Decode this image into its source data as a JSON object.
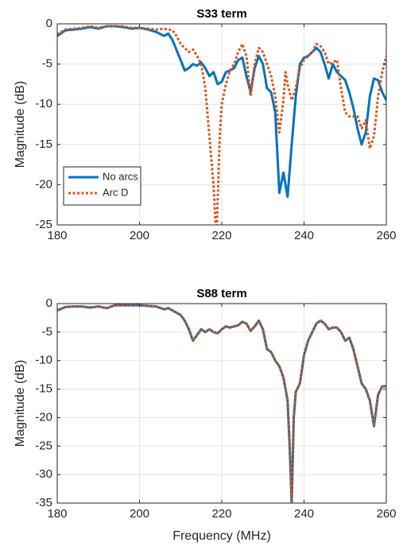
{
  "chart_data": [
    {
      "type": "line",
      "title": "S33 term",
      "ylabel": "Magnitude (dB)",
      "xlim": [
        180,
        260
      ],
      "xticks": [
        180,
        200,
        220,
        240,
        260
      ],
      "ylim": [
        -25,
        0
      ],
      "yticks": [
        -25,
        -20,
        -15,
        -10,
        -5,
        0
      ],
      "grid": true,
      "legend": "lower left",
      "series": [
        {
          "name": "No arcs",
          "color": "#0072bd",
          "style": "solid",
          "x": [
            180,
            182,
            184,
            186,
            188,
            190,
            192,
            194,
            196,
            198,
            200,
            202,
            204,
            206,
            207,
            208,
            210,
            211,
            212,
            213,
            214,
            215,
            216,
            217,
            218,
            219,
            220,
            221,
            222,
            223,
            224,
            225,
            226,
            227,
            228,
            229,
            230,
            231,
            232,
            233,
            234,
            235,
            236,
            237,
            238,
            239,
            240,
            241,
            242,
            243,
            244,
            245,
            246,
            247,
            248,
            249,
            250,
            251,
            252,
            253,
            254,
            255,
            256,
            257,
            258,
            259,
            260
          ],
          "values": [
            -1.5,
            -0.8,
            -0.7,
            -0.6,
            -0.4,
            -0.6,
            -0.3,
            -0.3,
            -0.4,
            -0.6,
            -0.5,
            -0.7,
            -1.0,
            -1.5,
            -1.2,
            -2,
            -4.5,
            -5.8,
            -5.5,
            -5.0,
            -5.2,
            -4.8,
            -5.5,
            -6.5,
            -6.0,
            -7.5,
            -7.2,
            -6.0,
            -5.8,
            -5.5,
            -4.5,
            -4.2,
            -6.5,
            -8.5,
            -5.5,
            -4.0,
            -5.0,
            -8.0,
            -8.5,
            -11.0,
            -21.0,
            -18.5,
            -21.5,
            -15,
            -9,
            -5,
            -4.2,
            -4.0,
            -3.5,
            -3.0,
            -3.5,
            -5.0,
            -6.8,
            -5.0,
            -6.0,
            -6.5,
            -7.0,
            -8.5,
            -10.5,
            -13,
            -15,
            -13.5,
            -9,
            -6.8,
            -7.0,
            -8.5,
            -9.5
          ]
        },
        {
          "name": "Arc D",
          "color": "#d95319",
          "style": "dotted",
          "x": [
            180,
            182,
            184,
            186,
            188,
            190,
            192,
            194,
            196,
            198,
            200,
            202,
            204,
            206,
            208,
            209,
            210,
            211,
            212,
            213,
            214,
            215,
            216,
            217,
            218,
            218.7,
            219.5,
            220,
            221,
            222,
            223,
            224,
            225,
            226,
            227,
            228,
            229,
            230,
            231,
            232,
            233,
            234,
            235,
            235.5,
            236,
            237,
            238,
            239,
            240,
            241,
            242,
            243,
            244,
            245,
            246,
            247,
            248,
            249,
            250,
            251,
            252,
            253,
            254,
            255,
            256,
            257,
            258,
            259,
            260
          ],
          "values": [
            -1.3,
            -0.7,
            -0.6,
            -0.5,
            -0.3,
            -0.5,
            -0.3,
            -0.3,
            -0.3,
            -0.5,
            -0.5,
            -0.6,
            -0.7,
            -0.6,
            -0.8,
            -1.5,
            -2.5,
            -3.0,
            -3.5,
            -3.2,
            -4.0,
            -5,
            -8,
            -14,
            -20,
            -27,
            -14,
            -10,
            -7.5,
            -5.8,
            -5,
            -3.5,
            -2.5,
            -4,
            -9,
            -5,
            -3,
            -3.5,
            -5,
            -6.5,
            -9,
            -13.5,
            -9.5,
            -6.0,
            -7.5,
            -9.5,
            -8,
            -5.5,
            -4.5,
            -4.0,
            -3.5,
            -2.5,
            -2.8,
            -3.5,
            -5,
            -4.8,
            -4.5,
            -8,
            -11,
            -11.5,
            -11.5,
            -11.5,
            -13,
            -12,
            -15.5,
            -14,
            -9,
            -6,
            -4
          ]
        }
      ]
    },
    {
      "type": "line",
      "title": "S88 term",
      "ylabel": "Magnitude (dB)",
      "xlabel": "Frequency (MHz)",
      "xlim": [
        180,
        260
      ],
      "xticks": [
        180,
        200,
        220,
        240,
        260
      ],
      "ylim": [
        -35,
        0
      ],
      "yticks": [
        -35,
        -30,
        -25,
        -20,
        -15,
        -10,
        -5,
        0
      ],
      "grid": true,
      "series": [
        {
          "name": "No arcs",
          "color": "#0072bd",
          "style": "solid",
          "x": [
            180,
            182,
            184,
            186,
            188,
            190,
            192,
            194,
            196,
            198,
            200,
            202,
            204,
            206,
            207,
            208,
            210,
            211,
            212,
            213,
            214,
            215,
            216,
            217,
            218,
            219,
            220,
            221,
            222,
            223,
            224,
            225,
            226,
            227,
            228,
            229,
            230,
            231,
            232,
            233,
            234,
            235,
            236,
            236.5,
            237,
            237.5,
            238,
            239,
            240,
            241,
            242,
            243,
            244,
            245,
            246,
            247,
            248,
            249,
            250,
            251,
            252,
            253,
            254,
            255,
            256,
            257,
            258,
            259,
            260
          ],
          "values": [
            -1.2,
            -0.6,
            -0.5,
            -0.5,
            -0.7,
            -0.5,
            -0.8,
            -0.3,
            -0.3,
            -0.3,
            -0.3,
            -0.4,
            -0.5,
            -1.0,
            -0.8,
            -1.2,
            -2.0,
            -3.0,
            -4.5,
            -6.5,
            -5.5,
            -4.5,
            -5,
            -4.5,
            -5,
            -5.2,
            -4.5,
            -4.0,
            -4.2,
            -4.0,
            -3.8,
            -3.2,
            -3.5,
            -4.8,
            -4.0,
            -3,
            -4.5,
            -8,
            -8.5,
            -10,
            -11,
            -13,
            -17,
            -25,
            -35,
            -20,
            -15.5,
            -14,
            -9,
            -6.5,
            -5,
            -3.5,
            -3,
            -3.5,
            -4.5,
            -4.2,
            -4.2,
            -5,
            -6.5,
            -6,
            -8,
            -11,
            -14,
            -15,
            -17,
            -21.5,
            -16,
            -14.5,
            -14.5
          ]
        },
        {
          "name": "Arc D",
          "color": "#d95319",
          "style": "dotted",
          "x": [
            180,
            182,
            184,
            186,
            188,
            190,
            192,
            194,
            196,
            198,
            200,
            202,
            204,
            206,
            207,
            208,
            210,
            211,
            212,
            213,
            214,
            215,
            216,
            217,
            218,
            219,
            220,
            221,
            222,
            223,
            224,
            225,
            226,
            227,
            228,
            229,
            230,
            231,
            232,
            233,
            234,
            235,
            236,
            236.5,
            237,
            237.5,
            238,
            239,
            240,
            241,
            242,
            243,
            244,
            245,
            246,
            247,
            248,
            249,
            250,
            251,
            252,
            253,
            254,
            255,
            256,
            257,
            258,
            259,
            260
          ],
          "values": [
            -1.2,
            -0.6,
            -0.5,
            -0.5,
            -0.7,
            -0.5,
            -0.8,
            -0.3,
            -0.3,
            -0.3,
            -0.3,
            -0.4,
            -0.5,
            -1.0,
            -0.8,
            -1.2,
            -2.0,
            -3.0,
            -4.5,
            -6.5,
            -5.5,
            -4.5,
            -5,
            -4.5,
            -5,
            -5.2,
            -4.5,
            -4.0,
            -4.2,
            -4.0,
            -3.8,
            -3.2,
            -3.5,
            -4.8,
            -4.0,
            -3,
            -4.5,
            -8,
            -8.5,
            -10,
            -11,
            -13,
            -17,
            -25,
            -35,
            -20,
            -15.5,
            -14,
            -9,
            -6.5,
            -5,
            -3.5,
            -3,
            -3.5,
            -4.5,
            -4.2,
            -4.2,
            -5,
            -6.5,
            -6,
            -8,
            -11,
            -14,
            -15,
            -17,
            -21.5,
            -16,
            -14.5,
            -14.5
          ]
        }
      ]
    }
  ]
}
